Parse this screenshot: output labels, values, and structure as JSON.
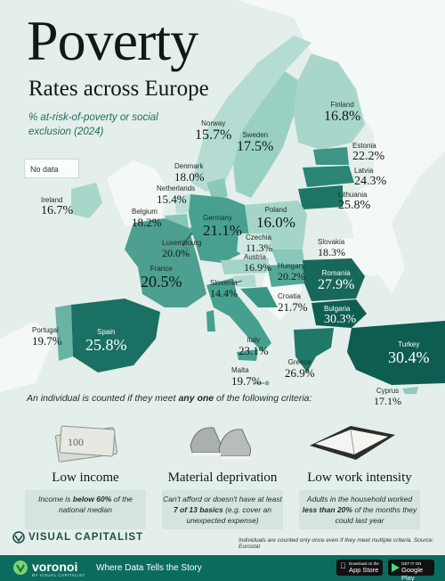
{
  "title": "Poverty",
  "subtitle": "Rates across Europe",
  "metric_label": "% at-risk-of-poverty or social exclusion (2024)",
  "legend": {
    "no_data": "No data"
  },
  "countries": [
    {
      "id": "finland",
      "name": "Finland",
      "value": "16.8%"
    },
    {
      "id": "norway",
      "name": "Norway",
      "value": "15.7%"
    },
    {
      "id": "sweden",
      "name": "Sweden",
      "value": "17.5%"
    },
    {
      "id": "estonia",
      "name": "Estonia",
      "value": "22.2%"
    },
    {
      "id": "latvia",
      "name": "Latvia",
      "value": "24.3%"
    },
    {
      "id": "lithuania",
      "name": "Lithuania",
      "value": "25.8%"
    },
    {
      "id": "denmark",
      "name": "Denmark",
      "value": "18.0%"
    },
    {
      "id": "netherlands",
      "name": "Netherlands",
      "value": "15.4%"
    },
    {
      "id": "ireland",
      "name": "Ireland",
      "value": "16.7%"
    },
    {
      "id": "belgium",
      "name": "Belgium",
      "value": "18.2%"
    },
    {
      "id": "germany",
      "name": "Germany",
      "value": "21.1%"
    },
    {
      "id": "poland",
      "name": "Poland",
      "value": "16.0%"
    },
    {
      "id": "czechia",
      "name": "Czechia",
      "value": "11.3%"
    },
    {
      "id": "luxembourg",
      "name": "Luxembourg",
      "value": "20.0%"
    },
    {
      "id": "slovakia",
      "name": "Slovakia",
      "value": "18.3%"
    },
    {
      "id": "austria",
      "name": "Austria",
      "value": "16.9%"
    },
    {
      "id": "hungary",
      "name": "Hungary",
      "value": "20.2%"
    },
    {
      "id": "france",
      "name": "France",
      "value": "20.5%"
    },
    {
      "id": "romania",
      "name": "Romania",
      "value": "27.9%"
    },
    {
      "id": "slovenia",
      "name": "Slovenia",
      "value": "14.4%"
    },
    {
      "id": "croatia",
      "name": "Croatia",
      "value": "21.7%"
    },
    {
      "id": "bulgaria",
      "name": "Bulgaria",
      "value": "30.3%"
    },
    {
      "id": "portugal",
      "name": "Portugal",
      "value": "19.7%"
    },
    {
      "id": "spain",
      "name": "Spain",
      "value": "25.8%"
    },
    {
      "id": "italy",
      "name": "Italy",
      "value": "23.1%"
    },
    {
      "id": "turkey",
      "name": "Turkey",
      "value": "30.4%"
    },
    {
      "id": "greece",
      "name": "Greece",
      "value": "26.9%"
    },
    {
      "id": "malta",
      "name": "Malta",
      "value": "19.7%"
    },
    {
      "id": "cyprus",
      "name": "Cyprus",
      "value": "17.1%"
    }
  ],
  "colors": {
    "background": "#e4eeea",
    "land_nodata": "#f4f8f6",
    "scale_low": "#b9ddd4",
    "scale_mid": "#52a898",
    "scale_high": "#0e5e53",
    "brand_green": "#0c6b5f"
  },
  "criteria": {
    "intro_pre": "An individual is counted if they meet ",
    "intro_bold": "any one",
    "intro_post": " of the following criteria:",
    "cards": [
      {
        "title": "Low income",
        "icon": "cash-icon",
        "desc_1": "Income is ",
        "desc_bold": "below 60%",
        "desc_2": " of the national median"
      },
      {
        "title": "Material deprivation",
        "icon": "shoes-icon",
        "desc_1": "Can't afford or doesn't have at least ",
        "desc_bold": "7 of 13 basics",
        "desc_2": " (e.g. cover an unexpected expense)"
      },
      {
        "title": "Low work intensity",
        "icon": "planner-icon",
        "desc_1": "Adults in the household worked ",
        "desc_bold": "less than 20%",
        "desc_2": " of the months they could last year"
      }
    ]
  },
  "footer": {
    "brand": "VISUAL CAPITALIST",
    "note": "Individuals are counted only once even if they meet multiple criteria. Source: Eurostat",
    "voronoi": "voronoi",
    "voronoi_sub": "BY VISUAL CAPITALIST",
    "tagline": "Where Data Tells the Story",
    "app_store_small": "Download on the",
    "app_store": "App Store",
    "google_small": "GET IT ON",
    "google": "Google Play"
  }
}
